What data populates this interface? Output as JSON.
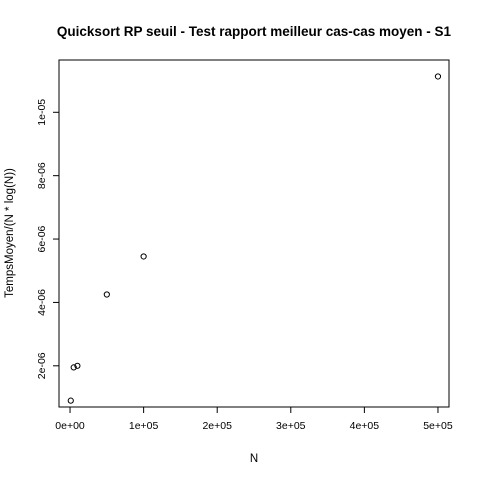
{
  "chart_data": {
    "type": "scatter",
    "title": "Quicksort RP seuil - Test rapport meilleur cas-cas moyen - S1",
    "xlabel": "N",
    "ylabel": "TempsMoyen/(N * log(N))",
    "xlim": [
      -15000,
      515000
    ],
    "ylim": [
      7e-07,
      1.165e-05
    ],
    "x_ticks": [
      {
        "value": 0,
        "label": "0e+00"
      },
      {
        "value": 100000,
        "label": "1e+05"
      },
      {
        "value": 200000,
        "label": "2e+05"
      },
      {
        "value": 300000,
        "label": "3e+05"
      },
      {
        "value": 400000,
        "label": "4e+05"
      },
      {
        "value": 500000,
        "label": "5e+05"
      }
    ],
    "y_ticks": [
      {
        "value": 2e-06,
        "label": "2e-06"
      },
      {
        "value": 4e-06,
        "label": "4e-06"
      },
      {
        "value": 6e-06,
        "label": "6e-06"
      },
      {
        "value": 8e-06,
        "label": "8e-06"
      },
      {
        "value": 1e-05,
        "label": "1e-05"
      }
    ],
    "points": [
      {
        "x": 1000,
        "y": 9e-07
      },
      {
        "x": 5000,
        "y": 1.95e-06
      },
      {
        "x": 10000,
        "y": 2e-06
      },
      {
        "x": 50000,
        "y": 4.25e-06
      },
      {
        "x": 100000,
        "y": 5.45e-06
      },
      {
        "x": 500000,
        "y": 1.113e-05
      }
    ],
    "grid": false,
    "marker": "open-circle"
  }
}
